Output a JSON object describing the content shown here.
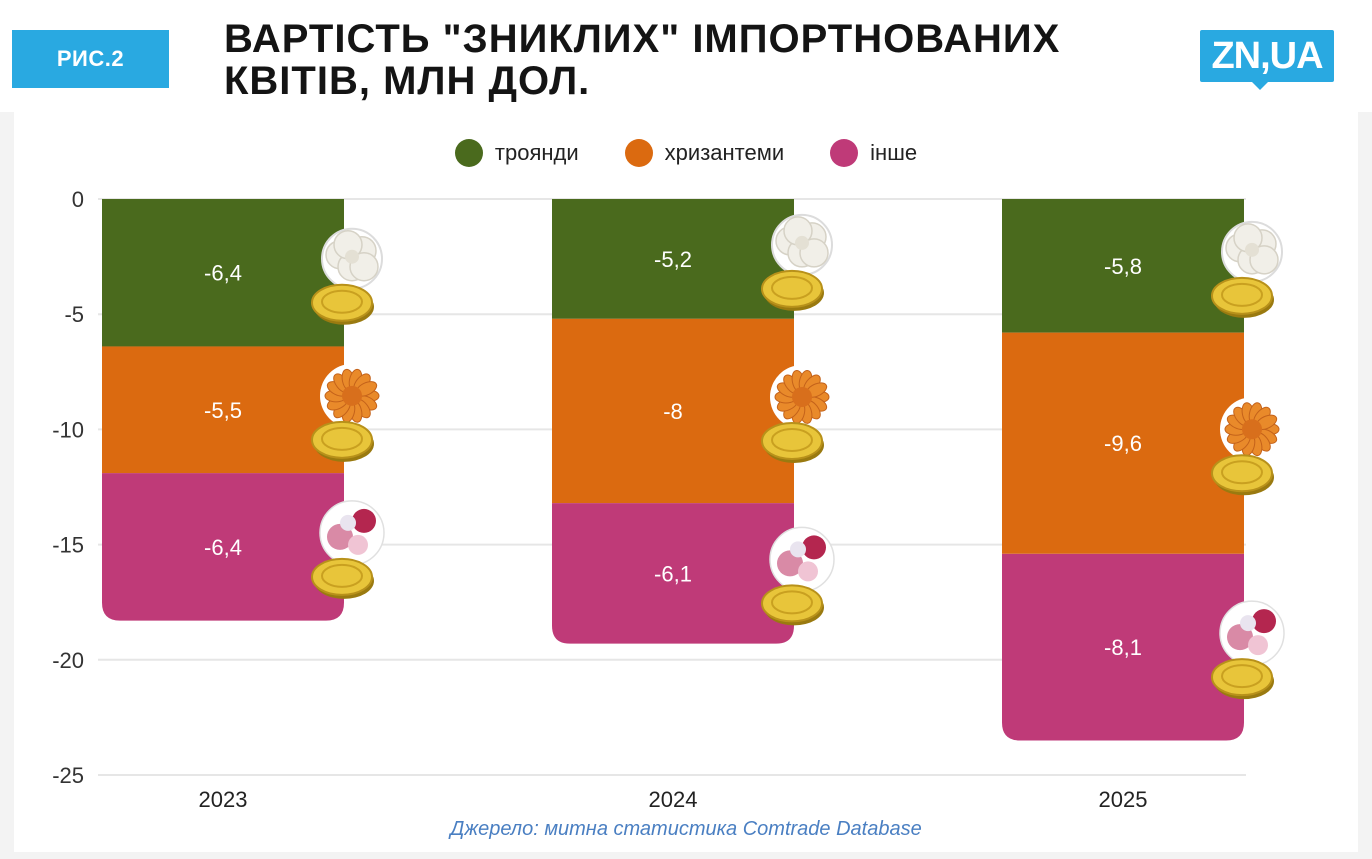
{
  "header": {
    "figure_label": "РИС.2",
    "title_line1": "ВАРТІСТЬ \"ЗНИКЛИХ\" ІМПОРТНОВАНИХ",
    "title_line2": "КВІТІВ, МЛН ДОЛ.",
    "logo_text": "ZN,UA",
    "brand_color": "#29a9e1"
  },
  "source": "Джерело: митна статистика Comtrade Database",
  "chart_data": {
    "type": "bar",
    "stacked": true,
    "categories": [
      "2023",
      "2024",
      "2025"
    ],
    "series": [
      {
        "name": "троянди",
        "color": "#4a6a1d",
        "values": [
          -6.4,
          -5.2,
          -5.8
        ],
        "labels": [
          "-6,4",
          "-5,2",
          "-5,8"
        ]
      },
      {
        "name": "хризантеми",
        "color": "#db6a10",
        "values": [
          -5.5,
          -8,
          -9.6
        ],
        "labels": [
          "-5,5",
          "-8",
          "-9,6"
        ]
      },
      {
        "name": "інше",
        "color": "#bf3a78",
        "values": [
          -6.4,
          -6.1,
          -8.1
        ],
        "labels": [
          "-6,4",
          "-6,1",
          "-8,1"
        ]
      }
    ],
    "ylim": [
      -25,
      0
    ],
    "yticks": [
      0,
      -5,
      -10,
      -15,
      -20,
      -25
    ],
    "grid": true,
    "legend": "top-center",
    "decorations": "flower-and-coin-icons"
  }
}
